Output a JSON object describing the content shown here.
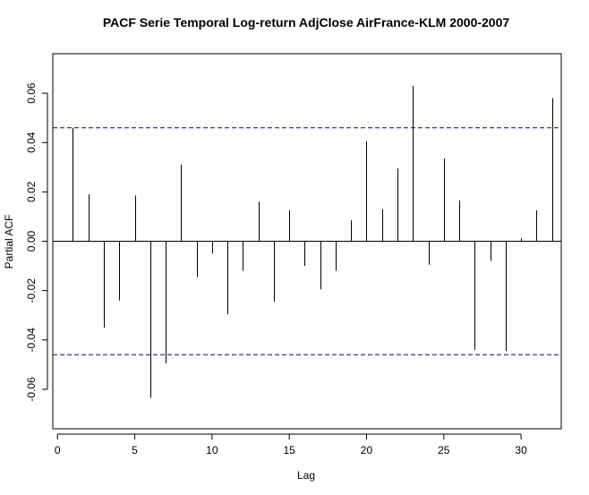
{
  "chart_data": {
    "type": "bar",
    "subtype": "pacf-correlogram",
    "title": "PACF Serie Temporal Log-return AdjClose AirFrance-KLM 2000-2007",
    "xlabel": "Lag",
    "ylabel": "Partial ACF",
    "xlim": [
      -0.3,
      32.6
    ],
    "ylim": [
      -0.076,
      0.076
    ],
    "xticks": [
      0,
      5,
      10,
      15,
      20,
      25,
      30
    ],
    "yticks": [
      -0.06,
      -0.04,
      -0.02,
      0.0,
      0.02,
      0.04,
      0.06
    ],
    "ytick_labels": [
      "-0.06",
      "-0.04",
      "-0.02",
      "0.00",
      "0.02",
      "0.04",
      "0.06"
    ],
    "confidence_bound": 0.046,
    "lags": [
      1,
      2,
      3,
      4,
      5,
      6,
      7,
      8,
      9,
      10,
      11,
      12,
      13,
      14,
      15,
      16,
      17,
      18,
      19,
      20,
      21,
      22,
      23,
      24,
      25,
      26,
      27,
      28,
      29,
      30,
      31,
      32
    ],
    "values": [
      0.046,
      0.019,
      -0.035,
      -0.024,
      0.0185,
      -0.0635,
      -0.0495,
      0.031,
      -0.0145,
      -0.005,
      -0.0295,
      -0.012,
      0.016,
      -0.0245,
      0.0125,
      -0.01,
      -0.0195,
      -0.012,
      0.0085,
      0.0405,
      0.013,
      0.0295,
      0.063,
      -0.0095,
      0.0335,
      0.0165,
      -0.044,
      -0.008,
      -0.0445,
      0.0012,
      0.0125,
      0.058
    ],
    "colors": {
      "lines": "#000000",
      "bounds": "#00008b",
      "background": "#ffffff"
    }
  }
}
